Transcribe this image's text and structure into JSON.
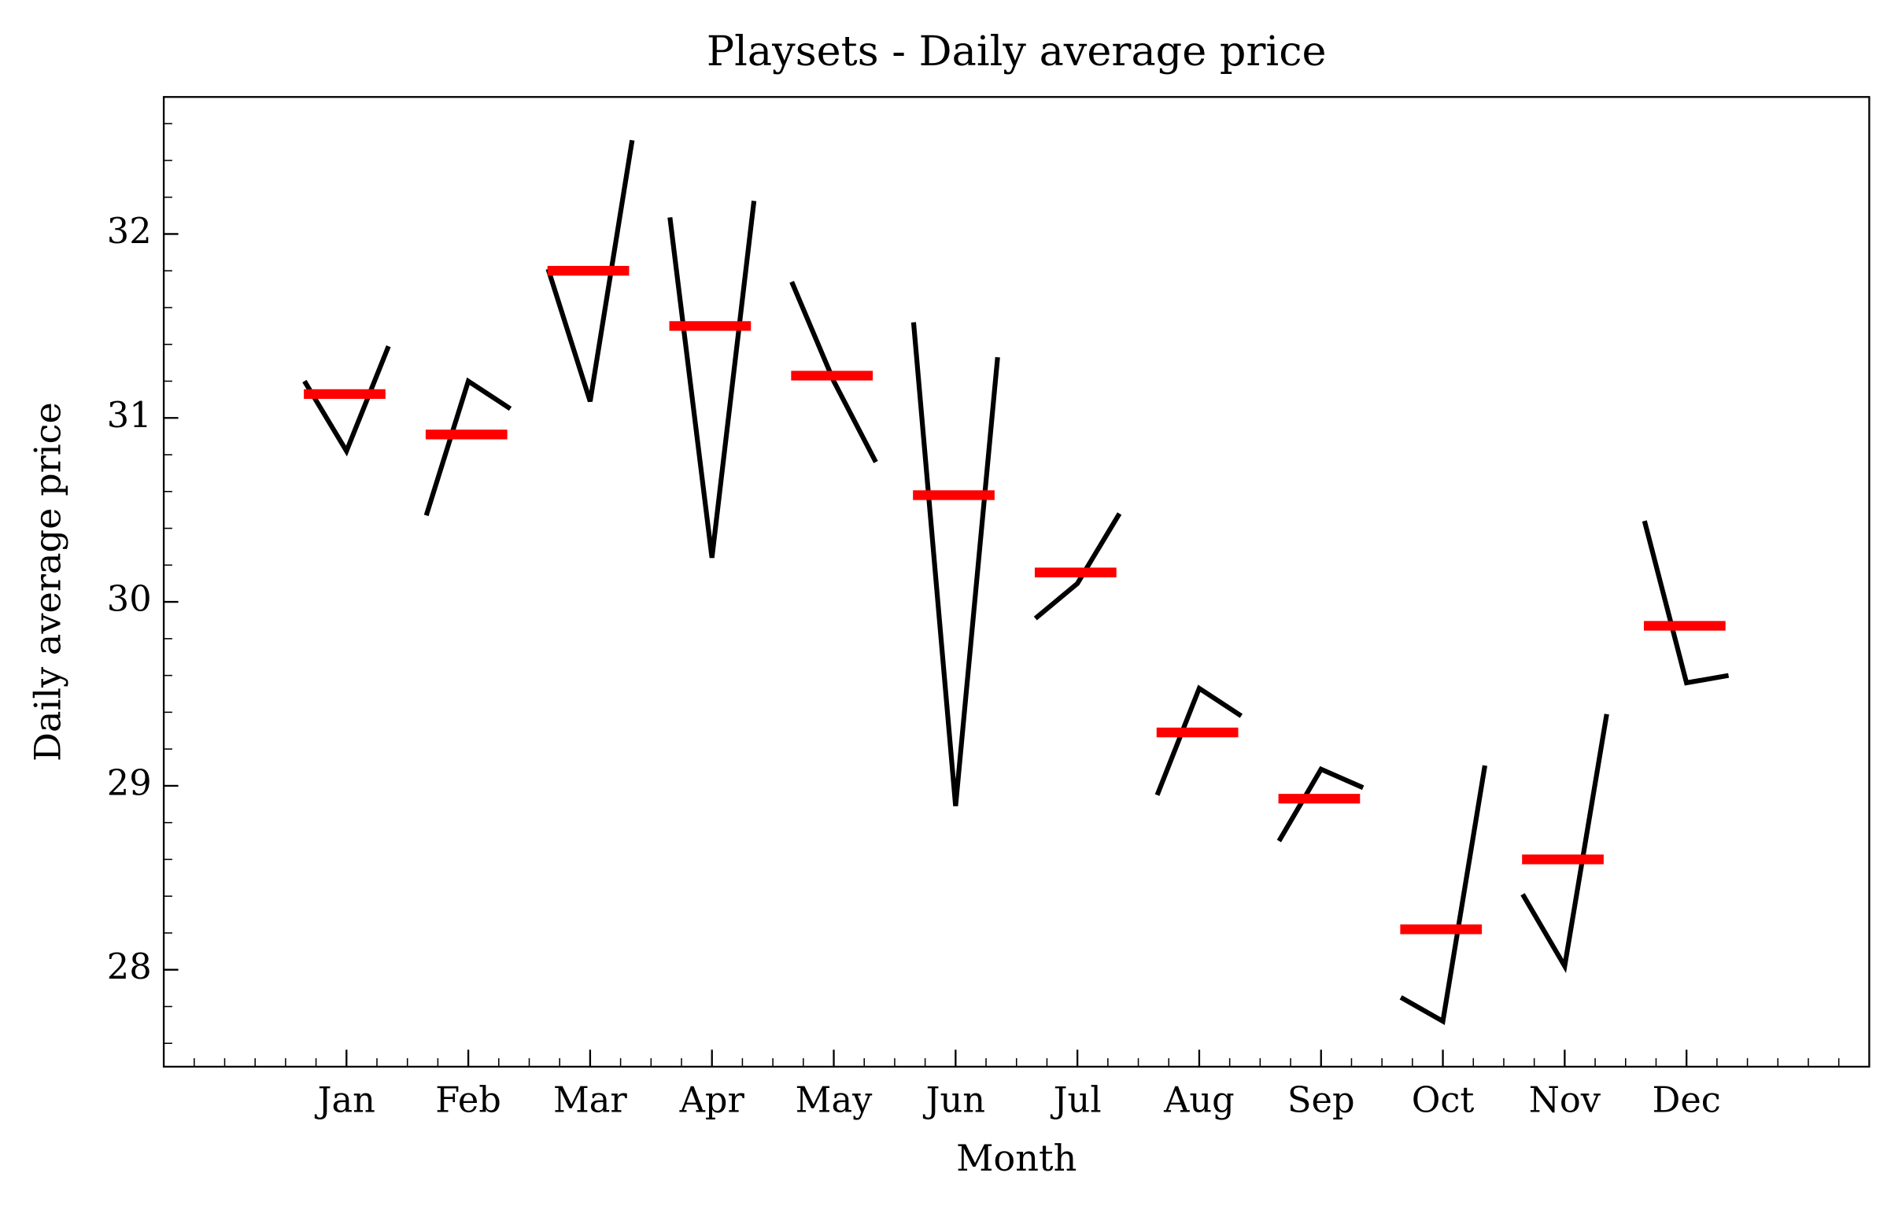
{
  "chart_data": {
    "type": "month_plot",
    "title": "Playsets - Daily average price",
    "x_label": "Month",
    "y_label": "Daily average price",
    "categories": [
      "Jan",
      "Feb",
      "Mar",
      "Apr",
      "May",
      "Jun",
      "Jul",
      "Aug",
      "Sep",
      "Oct",
      "Nov",
      "Dec"
    ],
    "values": [
      [
        31.2,
        30.82,
        31.39
      ],
      [
        30.47,
        31.2,
        31.05
      ],
      [
        31.81,
        31.09,
        32.51
      ],
      [
        32.09,
        30.24,
        32.18
      ],
      [
        31.74,
        31.2,
        30.76
      ],
      [
        31.52,
        28.89,
        31.33
      ],
      [
        29.91,
        30.1,
        30.48
      ],
      [
        28.95,
        29.53,
        29.38
      ],
      [
        28.7,
        29.09,
        28.99
      ],
      [
        27.85,
        27.72,
        29.11
      ],
      [
        28.41,
        28.02,
        29.39
      ],
      [
        30.44,
        29.56,
        29.6
      ]
    ],
    "means": [
      31.13,
      30.91,
      31.8,
      31.5,
      31.23,
      30.58,
      30.16,
      29.29,
      28.93,
      28.22,
      28.6,
      29.87
    ],
    "line_color": "#000000",
    "mean_color": "#ff0000",
    "ylim": [
      27.473,
      32.745
    ],
    "yticks": [
      28,
      29,
      30,
      31,
      32
    ]
  }
}
